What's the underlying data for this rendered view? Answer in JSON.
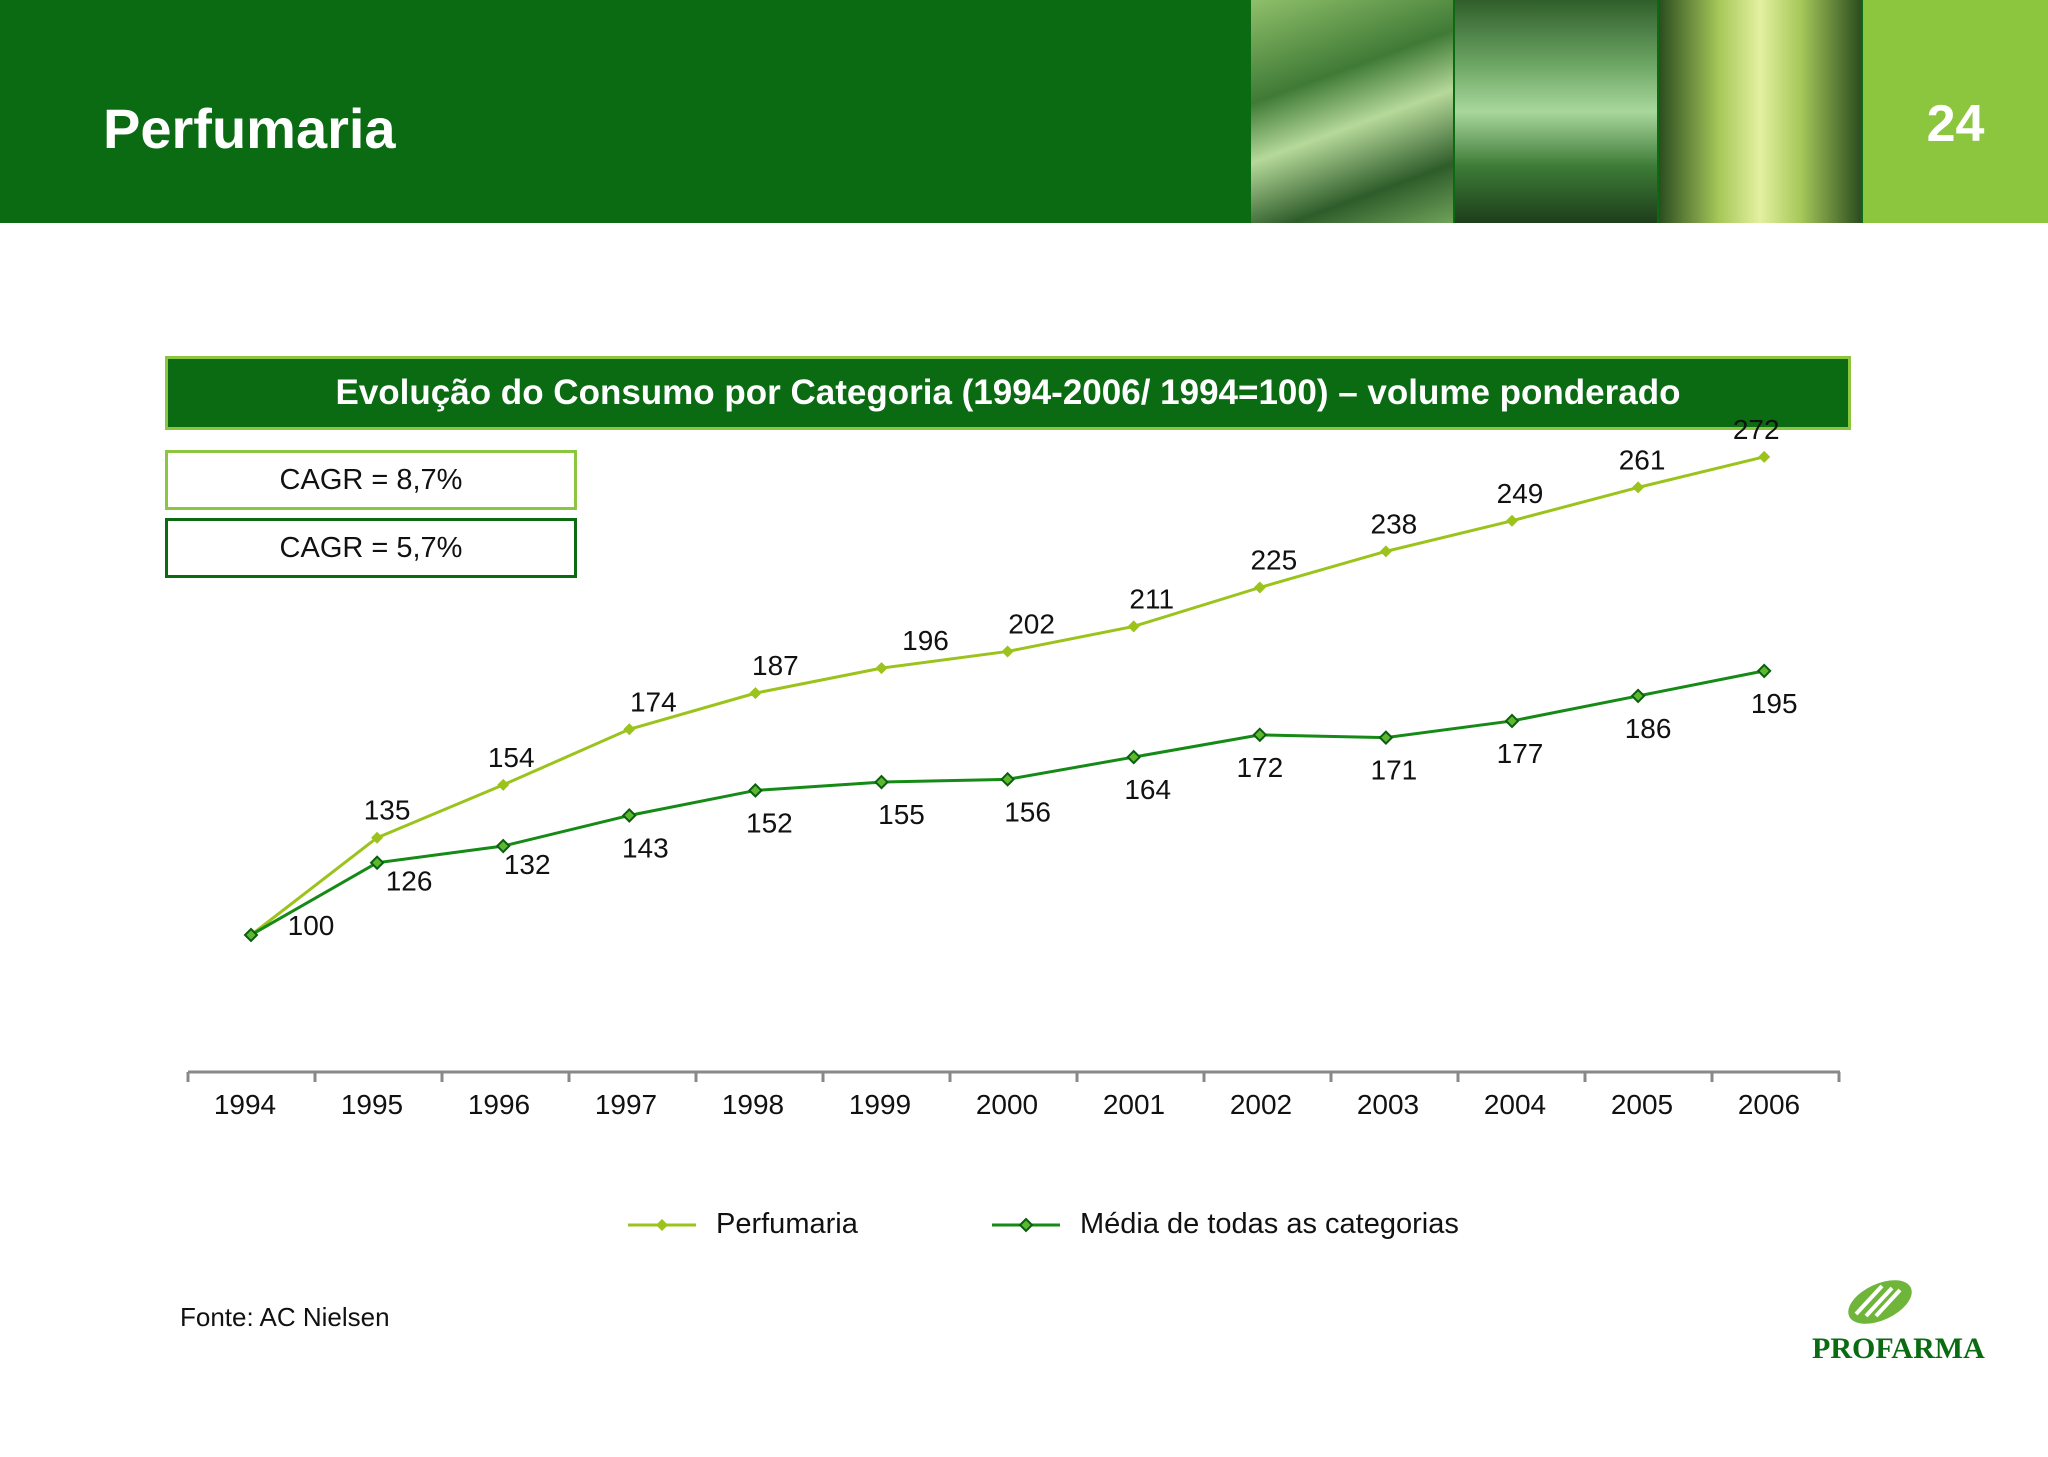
{
  "header": {
    "title": "Perfumaria",
    "page_number": "24"
  },
  "banner": {
    "title": "Evolução do Consumo por Categoria (1994-2006/ 1994=100) – volume ponderado"
  },
  "cagr": {
    "perfumaria": "CAGR = 8,7%",
    "media": "CAGR = 5,7%"
  },
  "colors": {
    "dark_green": "#0a6b12",
    "light_green": "#8cc63f",
    "line_light": "#9bc31c",
    "line_dark": "#158a16"
  },
  "chart_data": {
    "type": "line",
    "title": "Evolução do Consumo por Categoria (1994-2006/ 1994=100) – volume ponderado",
    "categories": [
      "1994",
      "1995",
      "1996",
      "1997",
      "1998",
      "1999",
      "2000",
      "2001",
      "2002",
      "2003",
      "2004",
      "2005",
      "2006"
    ],
    "series": [
      {
        "name": "Perfumaria",
        "values": [
          100,
          135,
          154,
          174,
          187,
          196,
          202,
          211,
          225,
          238,
          249,
          261,
          272
        ],
        "color": "#9bc31c"
      },
      {
        "name": "Média de todas as categorias",
        "values": [
          100,
          126,
          132,
          143,
          152,
          155,
          156,
          164,
          172,
          171,
          177,
          186,
          195
        ],
        "color": "#158a16"
      }
    ],
    "xlabel": "",
    "ylabel": "",
    "ylim": [
      50,
      300
    ],
    "legend": "bottom",
    "grid": false
  },
  "footer": {
    "source": "Fonte: AC Nielsen",
    "logo_text": "PROFARMA"
  }
}
